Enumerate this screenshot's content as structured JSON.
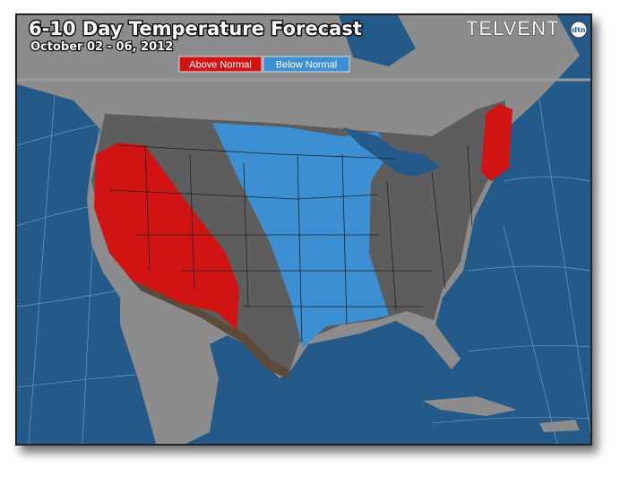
{
  "header": {
    "title": "6-10 Day Temperature Forecast",
    "subtitle": "October 02 - 06, 2012",
    "logo": "TELVENT",
    "logo_badge": "dtn"
  },
  "legend": [
    {
      "label": "Above Normal",
      "color": "#d01414"
    },
    {
      "label": "Below Normal",
      "color": "#3b8fd2"
    }
  ]
}
